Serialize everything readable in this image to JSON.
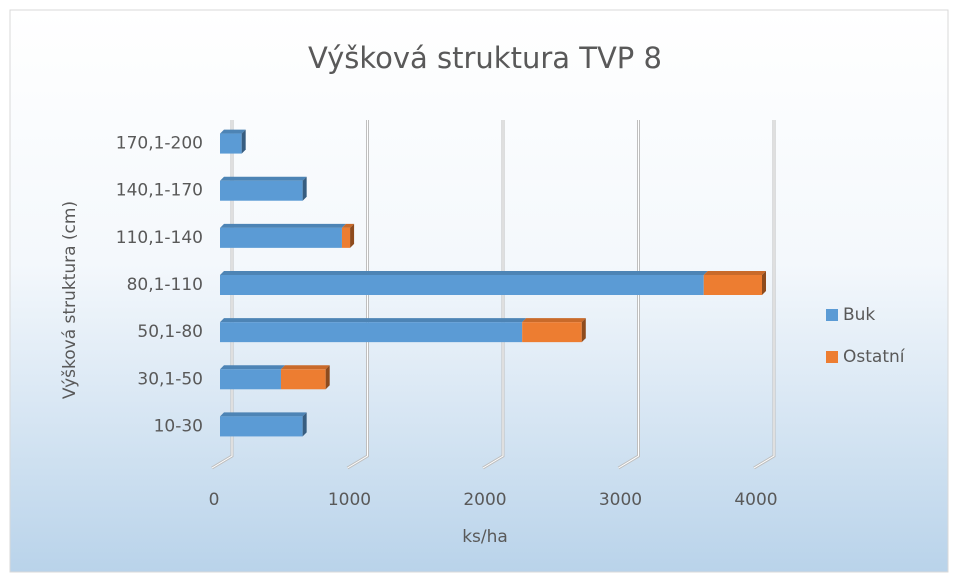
{
  "chart_data": {
    "type": "bar",
    "orientation": "horizontal",
    "stacked": true,
    "title": "Výšková struktura TVP 8",
    "x_label": "ks/ha",
    "y_label": "Výšková struktura (cm)",
    "categories": [
      "10-30",
      "30,1-50",
      "50,1-80",
      "80,1-110",
      "110,1-140",
      "140,1-170",
      "170,1-200"
    ],
    "series": [
      {
        "name": "Buk",
        "color": "#5b9bd5",
        "values": [
          610,
          450,
          2230,
          3570,
          900,
          610,
          160
        ]
      },
      {
        "name": "Ostatní",
        "color": "#ed7d31",
        "values": [
          0,
          330,
          440,
          430,
          60,
          0,
          0
        ]
      }
    ],
    "xlim": [
      0,
      4000
    ],
    "xticks": [
      0,
      1000,
      2000,
      3000,
      4000
    ],
    "grid": true,
    "legend": "right"
  }
}
